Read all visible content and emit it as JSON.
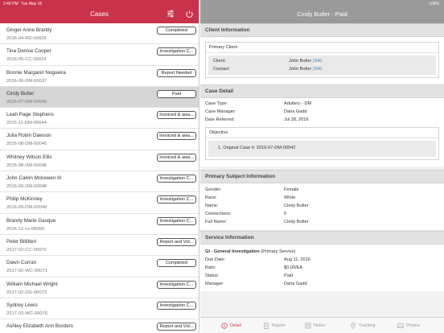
{
  "status_bar": {
    "time": "2:45 PM",
    "date": "Tue May 16",
    "right": "100%"
  },
  "left": {
    "title": "Cases",
    "cases": [
      {
        "name": "Ginger Anne Brantly",
        "id": "2016-04-RD-00029",
        "status": "Completed"
      },
      {
        "name": "Tina Denise Cooper",
        "id": "2016-05-CC-00034",
        "status": "Investigation C..."
      },
      {
        "name": "Bonnie Margaret Nogueira",
        "id": "2016-06-DM-00037",
        "status": "Report Needed"
      },
      {
        "name": "Cindy Butler",
        "id": "2016-07-DM-00042",
        "status": "Paid"
      },
      {
        "name": "Leah Page Stephens",
        "id": "2015-11-DM-00044",
        "status": "Invoiced & awa..."
      },
      {
        "name": "Julia Robin Dawson",
        "id": "2016-08-DM-00045",
        "status": "Invoiced & awa..."
      },
      {
        "name": "Whitney Wilson Ellis",
        "id": "2016-08-DM-00046",
        "status": "Invoiced & awa..."
      },
      {
        "name": "John Calvin Mckewen III",
        "id": "2016-09-DM-00048",
        "status": "Investigation C..."
      },
      {
        "name": "Philip McKinney",
        "id": "2016-09-DM-00049",
        "status": "Investigation C..."
      },
      {
        "name": "Brandy Marie Gasque",
        "id": "2016-12-cs-00060",
        "status": "Investigation C..."
      },
      {
        "name": "Peter Billitteri",
        "id": "2017-02-CC-00070",
        "status": "Report and Vid..."
      },
      {
        "name": "Dawn Curran",
        "id": "2017-02-WC-00071",
        "status": "Completed"
      },
      {
        "name": "William Michael Wright",
        "id": "2017-02-DG-00073",
        "status": "Investigation C..."
      },
      {
        "name": "Sydney Lewis",
        "id": "2017-03-WC-00076",
        "status": "Investigation C..."
      },
      {
        "name": "Ashley Elizabeth Ann Borders",
        "id": "",
        "status": "Report and Vid..."
      }
    ]
  },
  "right": {
    "title": "Cindy Butler - Paid",
    "client_info": {
      "heading": "Client Information",
      "box_title": "Primary Client",
      "client_label": "Client:",
      "client_value": "John Butler",
      "client_tag": "(SH)",
      "contact_label": "Contact:",
      "contact_value": "John Butler",
      "contact_tag": "(SH)"
    },
    "case_detail": {
      "heading": "Case Detail",
      "rows": [
        {
          "k": "Case Type:",
          "v": "Adultery - DM"
        },
        {
          "k": "Case Manager:",
          "v": "Daria Gadd"
        },
        {
          "k": "Date Referred:",
          "v": "Jul 28, 2016"
        }
      ],
      "objective_title": "Objective",
      "objective_line": "1.   Original Case #: 2016-07-DM-00042"
    },
    "primary_subject": {
      "heading": "Primary Subject Information",
      "rows": [
        {
          "k": "Gender:",
          "v": "Female"
        },
        {
          "k": "Race:",
          "v": "White"
        },
        {
          "k": "Name:",
          "v": "Cindy Butler"
        },
        {
          "k": "Connections:",
          "v": "0"
        },
        {
          "k": "Full Name:",
          "v": "Cindy Butler"
        }
      ]
    },
    "service_info": {
      "heading": "Service Information",
      "service_title": "GI - General Investigation",
      "service_note": "(Primary Service)",
      "rows": [
        {
          "k": "Due Date:",
          "v": "Aug 11, 2016"
        },
        {
          "k": "Rate:",
          "v": "$0.00/EA"
        },
        {
          "k": "Status:",
          "v": "Paid"
        },
        {
          "k": "Manager:",
          "v": "Daria Gadd"
        }
      ]
    },
    "tabs": [
      {
        "label": "Detail",
        "icon": "info-icon",
        "active": true
      },
      {
        "label": "Report",
        "icon": "document-icon",
        "active": false
      },
      {
        "label": "Notes",
        "icon": "notes-icon",
        "active": false
      },
      {
        "label": "Tracking",
        "icon": "location-pin-icon",
        "active": false
      },
      {
        "label": "Photos",
        "icon": "photo-icon",
        "active": false
      }
    ]
  },
  "colors": {
    "accent": "#c8324b",
    "right_header": "#9a9a9a",
    "link": "#3a7dc0"
  }
}
